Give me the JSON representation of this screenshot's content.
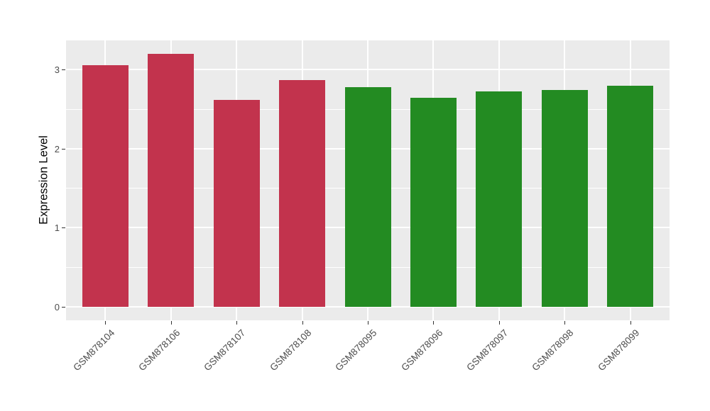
{
  "chart_data": {
    "type": "bar",
    "title": "",
    "xlabel": "",
    "ylabel": "Expression Level",
    "categories": [
      "GSM878104",
      "GSM878106",
      "GSM878107",
      "GSM878108",
      "GSM878095",
      "GSM878096",
      "GSM878097",
      "GSM878098",
      "GSM878099"
    ],
    "values": [
      3.06,
      3.2,
      2.62,
      2.87,
      2.78,
      2.64,
      2.72,
      2.74,
      2.8
    ],
    "bar_colors": [
      "#C2334D",
      "#C2334D",
      "#C2334D",
      "#C2334D",
      "#238B22",
      "#238B22",
      "#238B22",
      "#238B22",
      "#238B22"
    ],
    "series_groups": [
      {
        "name": "red-group",
        "color": "#C2334D",
        "categories": [
          "GSM878104",
          "GSM878106",
          "GSM878107",
          "GSM878108"
        ]
      },
      {
        "name": "green-group",
        "color": "#238B22",
        "categories": [
          "GSM878095",
          "GSM878096",
          "GSM878097",
          "GSM878098",
          "GSM878099"
        ]
      }
    ],
    "yticks": [
      0,
      1,
      2,
      3
    ],
    "minor_yticks": [
      0.5,
      1.5,
      2.5
    ],
    "ylim": [
      -0.17,
      3.37
    ],
    "grid": "major and minor horizontal + major vertical, white on grey panel",
    "legend": "none",
    "x_tick_label_angle": 45,
    "colors": {
      "panel_background": "#EBEBEB",
      "gridline": "#FFFFFF",
      "axis_text": "#4D4D4D",
      "axis_title": "#000000",
      "tick_mark": "#333333",
      "figure_background": "#FFFFFF"
    }
  }
}
